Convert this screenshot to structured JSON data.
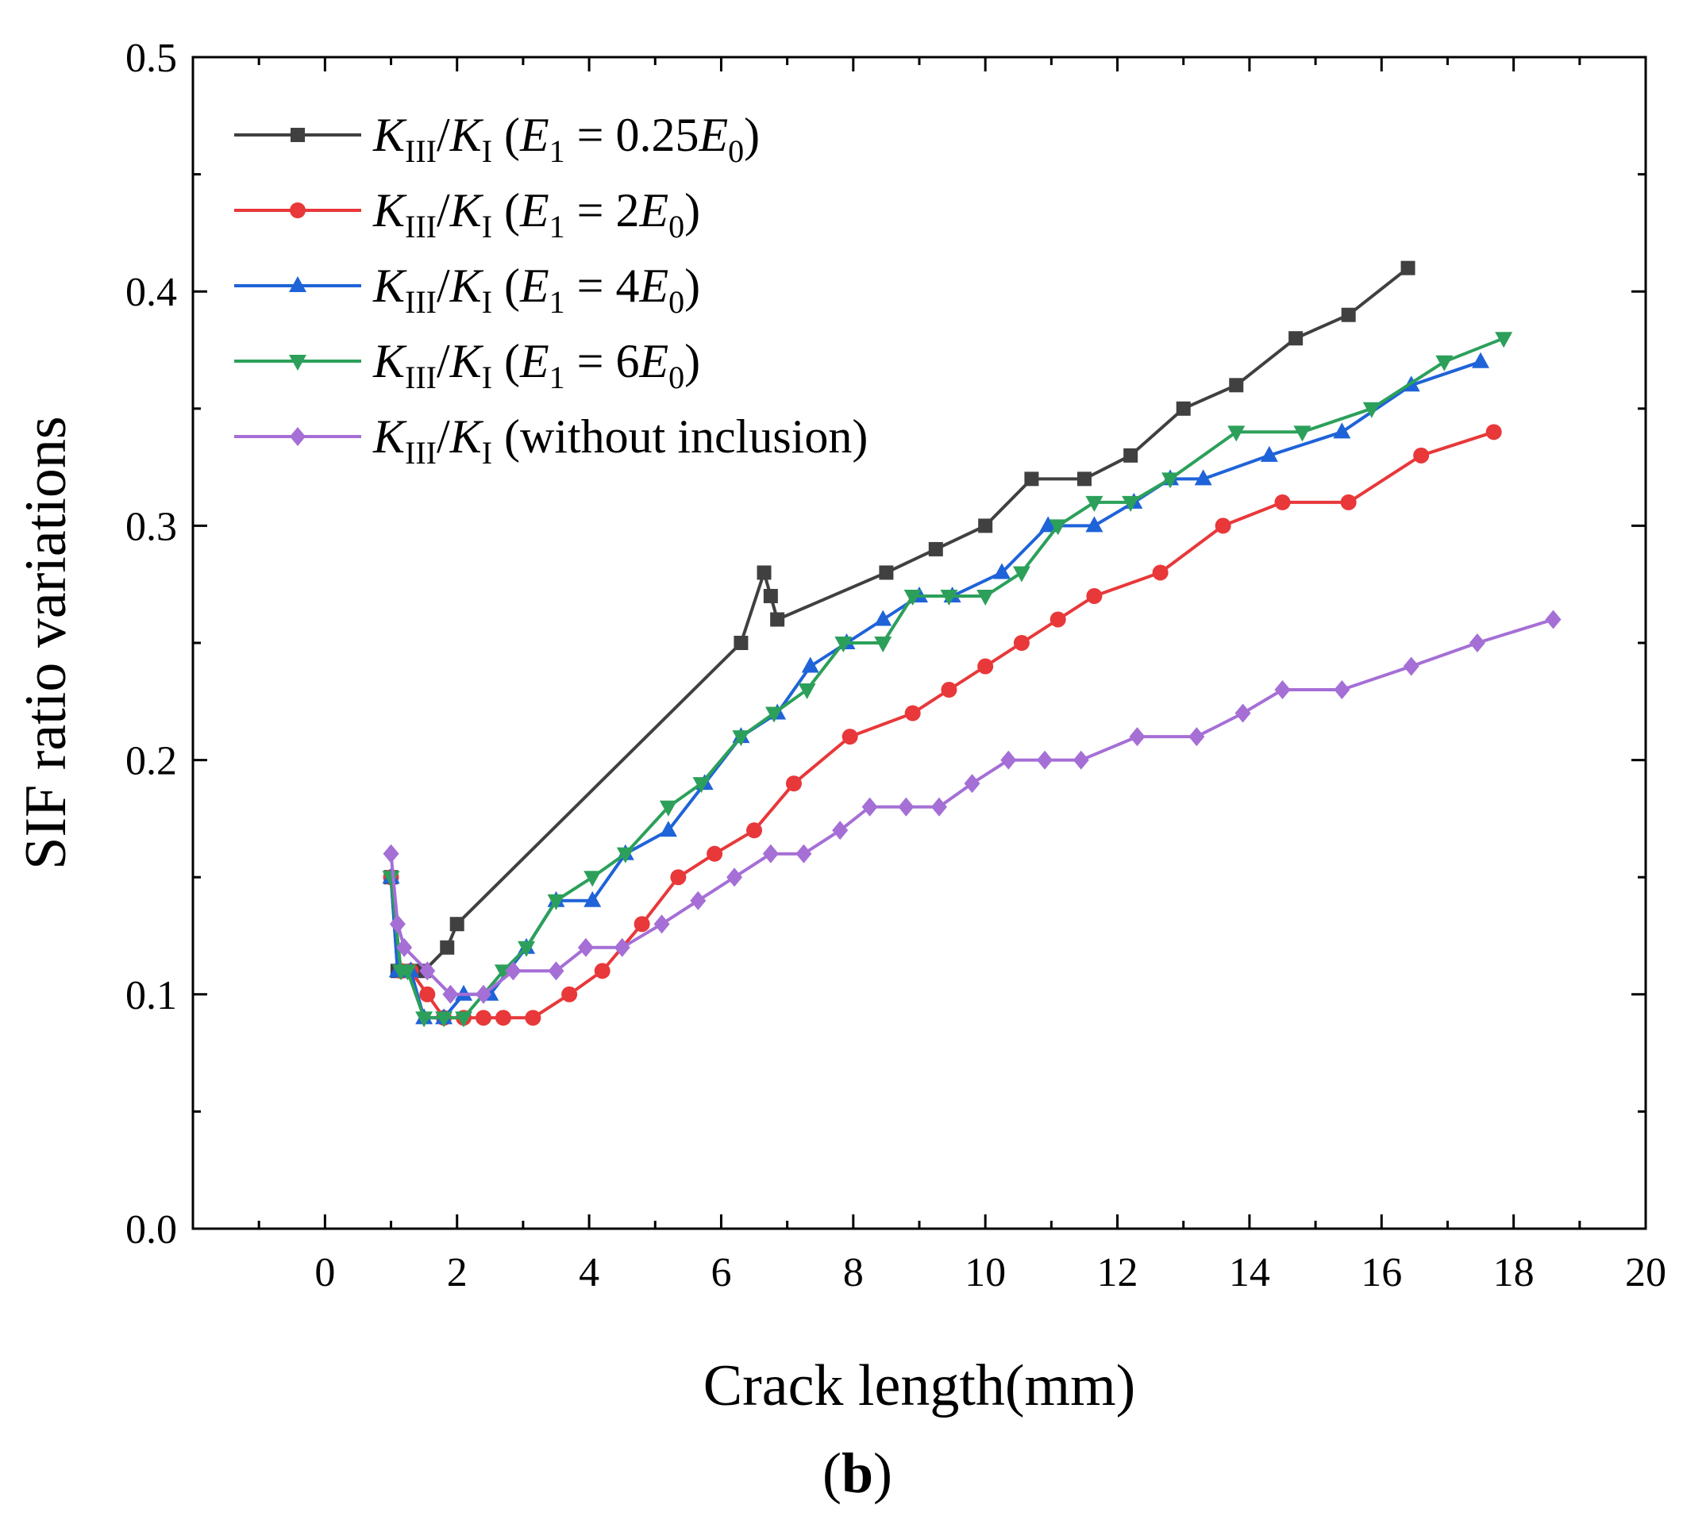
{
  "chart_data": {
    "type": "line",
    "title": "",
    "xlabel": "Crack length(mm)",
    "ylabel": "SIF ratio variations",
    "xlim": [
      -2,
      20
    ],
    "ylim": [
      0.0,
      0.5
    ],
    "xticks": [
      0,
      2,
      4,
      6,
      8,
      10,
      12,
      14,
      16,
      18,
      20
    ],
    "yticks": [
      0.0,
      0.1,
      0.2,
      0.3,
      0.4,
      0.5
    ],
    "xtick_labels": [
      "0",
      "2",
      "4",
      "6",
      "8",
      "10",
      "12",
      "14",
      "16",
      "18",
      "20"
    ],
    "ytick_labels": [
      "0.0",
      "0.1",
      "0.2",
      "0.3",
      "0.4",
      "0.5"
    ],
    "legend_position": "top-left",
    "panel_label": "b",
    "series": [
      {
        "name": "KIII/KI (E1 = 0.25E0)",
        "legend_tail": "0.25",
        "color": "#404040",
        "marker": "square",
        "x": [
          1.0,
          1.1,
          1.3,
          1.5,
          1.85,
          2.0,
          6.3,
          6.65,
          6.75,
          6.85,
          8.5,
          9.25,
          10.0,
          10.7,
          11.5,
          12.2,
          13.0,
          13.8,
          14.7,
          15.5,
          16.4
        ],
        "y": [
          0.15,
          0.11,
          0.11,
          0.11,
          0.12,
          0.13,
          0.25,
          0.28,
          0.27,
          0.26,
          0.28,
          0.29,
          0.3,
          0.32,
          0.32,
          0.33,
          0.35,
          0.36,
          0.38,
          0.39,
          0.41
        ]
      },
      {
        "name": "KIII/KI (E1 = 2E0)",
        "legend_tail": "2",
        "color": "#e8383a",
        "marker": "circle",
        "x": [
          1.0,
          1.15,
          1.3,
          1.55,
          1.8,
          2.1,
          2.4,
          2.7,
          3.15,
          3.7,
          4.2,
          4.8,
          5.35,
          5.9,
          6.5,
          7.1,
          7.95,
          8.9,
          9.45,
          10.0,
          10.55,
          11.1,
          11.65,
          12.65,
          13.6,
          14.5,
          15.5,
          16.6,
          17.7
        ],
        "y": [
          0.15,
          0.11,
          0.11,
          0.1,
          0.09,
          0.09,
          0.09,
          0.09,
          0.09,
          0.1,
          0.11,
          0.13,
          0.15,
          0.16,
          0.17,
          0.19,
          0.21,
          0.22,
          0.23,
          0.24,
          0.25,
          0.26,
          0.27,
          0.28,
          0.3,
          0.31,
          0.31,
          0.33,
          0.34
        ]
      },
      {
        "name": "KIII/KI (E1 = 4E0)",
        "legend_tail": "4",
        "color": "#1f63d8",
        "marker": "triangle-up",
        "x": [
          1.0,
          1.1,
          1.3,
          1.5,
          1.8,
          2.1,
          2.5,
          3.05,
          3.5,
          4.05,
          4.55,
          5.2,
          5.75,
          6.3,
          6.85,
          7.35,
          7.9,
          8.45,
          9.0,
          9.5,
          10.25,
          10.95,
          11.65,
          12.25,
          12.8,
          13.3,
          14.3,
          15.4,
          16.45,
          17.5
        ],
        "y": [
          0.15,
          0.11,
          0.11,
          0.09,
          0.09,
          0.1,
          0.1,
          0.12,
          0.14,
          0.14,
          0.16,
          0.17,
          0.19,
          0.21,
          0.22,
          0.24,
          0.25,
          0.26,
          0.27,
          0.27,
          0.28,
          0.3,
          0.3,
          0.31,
          0.32,
          0.32,
          0.33,
          0.34,
          0.36,
          0.37
        ]
      },
      {
        "name": "KIII/KI (E1 = 6E0)",
        "legend_tail": "6",
        "color": "#2ca05a",
        "marker": "triangle-down",
        "x": [
          1.0,
          1.15,
          1.25,
          1.5,
          1.8,
          2.1,
          2.7,
          3.05,
          3.5,
          4.05,
          4.55,
          5.2,
          5.7,
          6.3,
          6.8,
          7.3,
          7.85,
          8.45,
          8.9,
          9.45,
          10.0,
          10.55,
          11.1,
          11.65,
          12.2,
          12.8,
          13.8,
          14.8,
          15.85,
          16.95,
          17.85
        ],
        "y": [
          0.15,
          0.11,
          0.11,
          0.09,
          0.09,
          0.09,
          0.11,
          0.12,
          0.14,
          0.15,
          0.16,
          0.18,
          0.19,
          0.21,
          0.22,
          0.23,
          0.25,
          0.25,
          0.27,
          0.27,
          0.27,
          0.28,
          0.3,
          0.31,
          0.31,
          0.32,
          0.34,
          0.34,
          0.35,
          0.37,
          0.38
        ]
      },
      {
        "name": "KIII/KI (without inclusion)",
        "legend_tail": "without inclusion",
        "color": "#a56fd6",
        "marker": "diamond",
        "x": [
          1.0,
          1.1,
          1.2,
          1.55,
          1.9,
          2.4,
          2.85,
          3.5,
          3.95,
          4.5,
          5.1,
          5.65,
          6.2,
          6.75,
          7.25,
          7.8,
          8.25,
          8.8,
          9.3,
          9.8,
          10.35,
          10.9,
          11.45,
          12.3,
          13.2,
          13.9,
          14.5,
          15.4,
          16.45,
          17.45,
          18.6
        ],
        "y": [
          0.16,
          0.13,
          0.12,
          0.11,
          0.1,
          0.1,
          0.11,
          0.11,
          0.12,
          0.12,
          0.13,
          0.14,
          0.15,
          0.16,
          0.16,
          0.17,
          0.18,
          0.18,
          0.18,
          0.19,
          0.2,
          0.2,
          0.2,
          0.21,
          0.21,
          0.22,
          0.23,
          0.23,
          0.24,
          0.25,
          0.26
        ]
      }
    ]
  }
}
